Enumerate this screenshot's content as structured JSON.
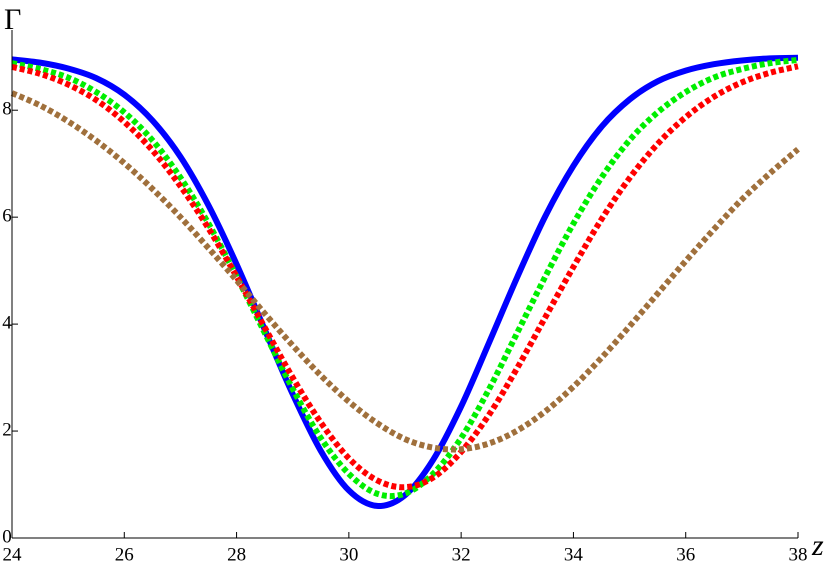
{
  "chart_data": {
    "type": "line",
    "xlabel": "z",
    "ylabel": "Γ",
    "x": [
      24,
      24.5,
      25,
      25.5,
      26,
      26.5,
      27,
      27.5,
      28,
      28.5,
      29,
      29.5,
      30,
      30.5,
      31,
      31.5,
      32,
      32.5,
      33,
      33.5,
      34,
      34.5,
      35,
      35.5,
      36,
      36.5,
      37,
      37.5,
      38
    ],
    "series": [
      {
        "color": "#0000ff",
        "style": "solid",
        "values": [
          8.95,
          8.89,
          8.78,
          8.6,
          8.29,
          7.81,
          7.13,
          6.22,
          5.12,
          3.9,
          2.69,
          1.63,
          0.89,
          0.6,
          0.8,
          1.46,
          2.46,
          3.66,
          4.88,
          6.02,
          6.96,
          7.69,
          8.2,
          8.54,
          8.74,
          8.86,
          8.93,
          8.97,
          8.98
        ]
      },
      {
        "color": "#00ee00",
        "style": "dashed",
        "values": [
          8.88,
          8.77,
          8.61,
          8.34,
          7.96,
          7.44,
          6.74,
          5.88,
          4.89,
          3.84,
          2.79,
          1.87,
          1.2,
          0.83,
          0.83,
          1.2,
          1.87,
          2.79,
          3.84,
          4.89,
          5.88,
          6.74,
          7.44,
          7.96,
          8.34,
          8.61,
          8.77,
          8.88,
          8.94
        ]
      },
      {
        "color": "#ff0000",
        "style": "dashed",
        "values": [
          8.81,
          8.68,
          8.48,
          8.19,
          7.78,
          7.25,
          6.58,
          5.79,
          4.89,
          3.94,
          3.0,
          2.16,
          1.49,
          1.08,
          0.95,
          1.13,
          1.61,
          2.31,
          3.18,
          4.13,
          5.07,
          5.96,
          6.73,
          7.37,
          7.87,
          8.25,
          8.52,
          8.7,
          8.82
        ]
      },
      {
        "color": "#a0703c",
        "style": "dashed",
        "values": [
          8.32,
          8.09,
          7.79,
          7.43,
          7.01,
          6.53,
          6.0,
          5.42,
          4.82,
          4.2,
          3.6,
          3.04,
          2.55,
          2.15,
          1.85,
          1.69,
          1.66,
          1.77,
          2.01,
          2.37,
          2.83,
          3.37,
          3.96,
          4.57,
          5.18,
          5.77,
          6.33,
          6.82,
          7.27
        ]
      }
    ],
    "xlim": [
      24,
      38
    ],
    "ylim": [
      0,
      9.5
    ],
    "xticks": [
      24,
      26,
      28,
      30,
      32,
      34,
      36,
      38
    ],
    "yticks": [
      0,
      2,
      4,
      6,
      8
    ]
  }
}
